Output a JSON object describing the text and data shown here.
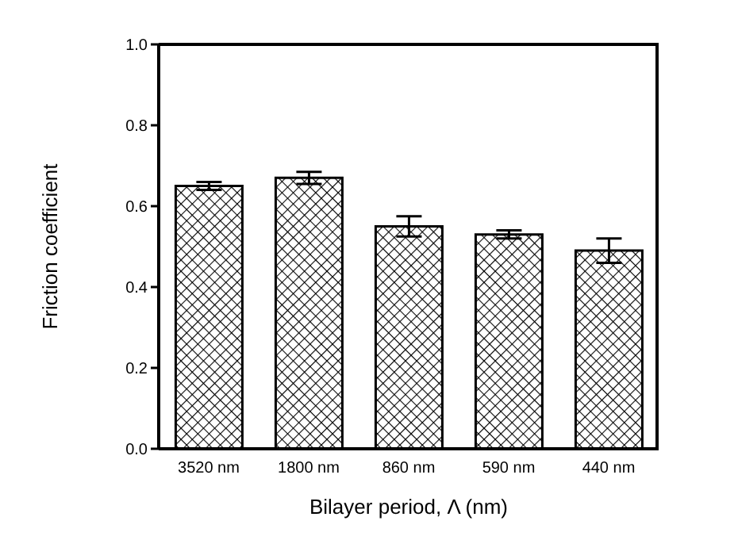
{
  "chart_data": {
    "type": "bar",
    "xlabel": "Bilayer period, Λ (nm)",
    "ylabel": "Friction coefficient",
    "categories": [
      "3520 nm",
      "1800 nm",
      "860 nm",
      "590 nm",
      "440 nm"
    ],
    "values": [
      0.65,
      0.67,
      0.55,
      0.53,
      0.49
    ],
    "errors": [
      0.01,
      0.015,
      0.025,
      0.01,
      0.03
    ],
    "color": "#000000",
    "ylim": [
      0,
      1
    ],
    "yticks": [
      {
        "value": 0,
        "label": "0.0"
      },
      {
        "value": 0.2,
        "label": "0.2"
      },
      {
        "value": 0.4,
        "label": "0.4"
      },
      {
        "value": 0.6,
        "label": "0.6"
      },
      {
        "value": 0.8,
        "label": "0.8"
      },
      {
        "value": 1,
        "label": "1.0"
      }
    ],
    "grid": false
  }
}
